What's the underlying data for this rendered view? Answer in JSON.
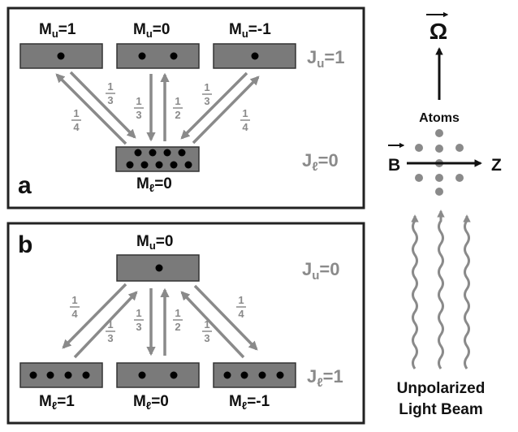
{
  "panel_a": {
    "letter": "a",
    "upper_labels": [
      "M",
      "M",
      "M"
    ],
    "upper_subs": [
      "u",
      "u",
      "u"
    ],
    "upper_vals": [
      "=1",
      "=0",
      "=-1"
    ],
    "upper_level": {
      "J": "J",
      "sub": "u",
      "val": "=1"
    },
    "lower_label": {
      "M": "M",
      "sub": "ℓ",
      "val": "=0"
    },
    "lower_level": {
      "J": "J",
      "sub": "ℓ",
      "val": "=0"
    },
    "fractions": [
      {
        "n": "1",
        "d": "4"
      },
      {
        "n": "1",
        "d": "3"
      },
      {
        "n": "1",
        "d": "3"
      },
      {
        "n": "1",
        "d": "2"
      },
      {
        "n": "1",
        "d": "3"
      },
      {
        "n": "1",
        "d": "4"
      }
    ]
  },
  "panel_b": {
    "letter": "b",
    "upper_label": {
      "M": "M",
      "sub": "u",
      "val": "=0"
    },
    "upper_level": {
      "J": "J",
      "sub": "u",
      "val": "=0"
    },
    "lower_labels": [
      "M",
      "M",
      "M"
    ],
    "lower_subs": [
      "ℓ",
      "ℓ",
      "ℓ"
    ],
    "lower_vals": [
      "=1",
      "=0",
      "=-1"
    ],
    "lower_level": {
      "J": "J",
      "sub": "ℓ",
      "val": "=1"
    },
    "fractions": [
      {
        "n": "1",
        "d": "4"
      },
      {
        "n": "1",
        "d": "3"
      },
      {
        "n": "1",
        "d": "3"
      },
      {
        "n": "1",
        "d": "2"
      },
      {
        "n": "1",
        "d": "3"
      },
      {
        "n": "1",
        "d": "4"
      }
    ]
  },
  "side": {
    "omega": "Ω",
    "atoms": "Atoms",
    "b_field": "B",
    "z_axis": "Z",
    "beam_line1": "Unpolarized",
    "beam_line2": "Light Beam"
  }
}
